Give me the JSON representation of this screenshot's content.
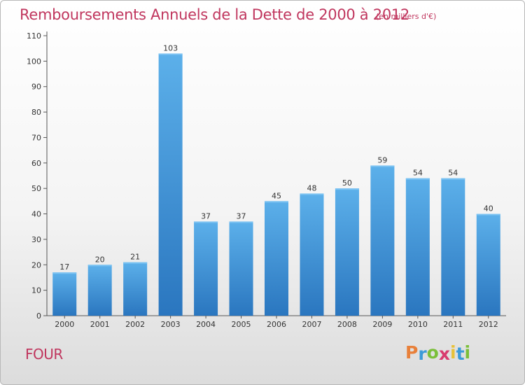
{
  "chart_data": {
    "type": "bar",
    "title": "Remboursements Annuels de la Dette de 2000 à 2012",
    "subtitle": "(en milliers d'€)",
    "categories": [
      "2000",
      "2001",
      "2002",
      "2003",
      "2004",
      "2005",
      "2006",
      "2007",
      "2008",
      "2009",
      "2010",
      "2011",
      "2012"
    ],
    "values": [
      17,
      20,
      21,
      103,
      37,
      37,
      45,
      48,
      50,
      59,
      54,
      54,
      40
    ],
    "ylim": [
      0,
      110
    ],
    "yticks": [
      0,
      10,
      20,
      30,
      40,
      50,
      60,
      70,
      80,
      90,
      100,
      110
    ],
    "grid": false,
    "bar_color": "#3a93d8",
    "bar_color_light": "#5cb0ea",
    "bar_color_dark": "#2a76bf"
  },
  "footer": {
    "place": "FOUR",
    "logo_letters": [
      "P",
      "r",
      "o",
      "x",
      "i",
      "t",
      "i"
    ],
    "logo_colors": [
      "#e8803a",
      "#3c9bd8",
      "#7bbf3a",
      "#d83a6e",
      "#e8c23a",
      "#3c9bd8",
      "#7bbf3a"
    ]
  }
}
